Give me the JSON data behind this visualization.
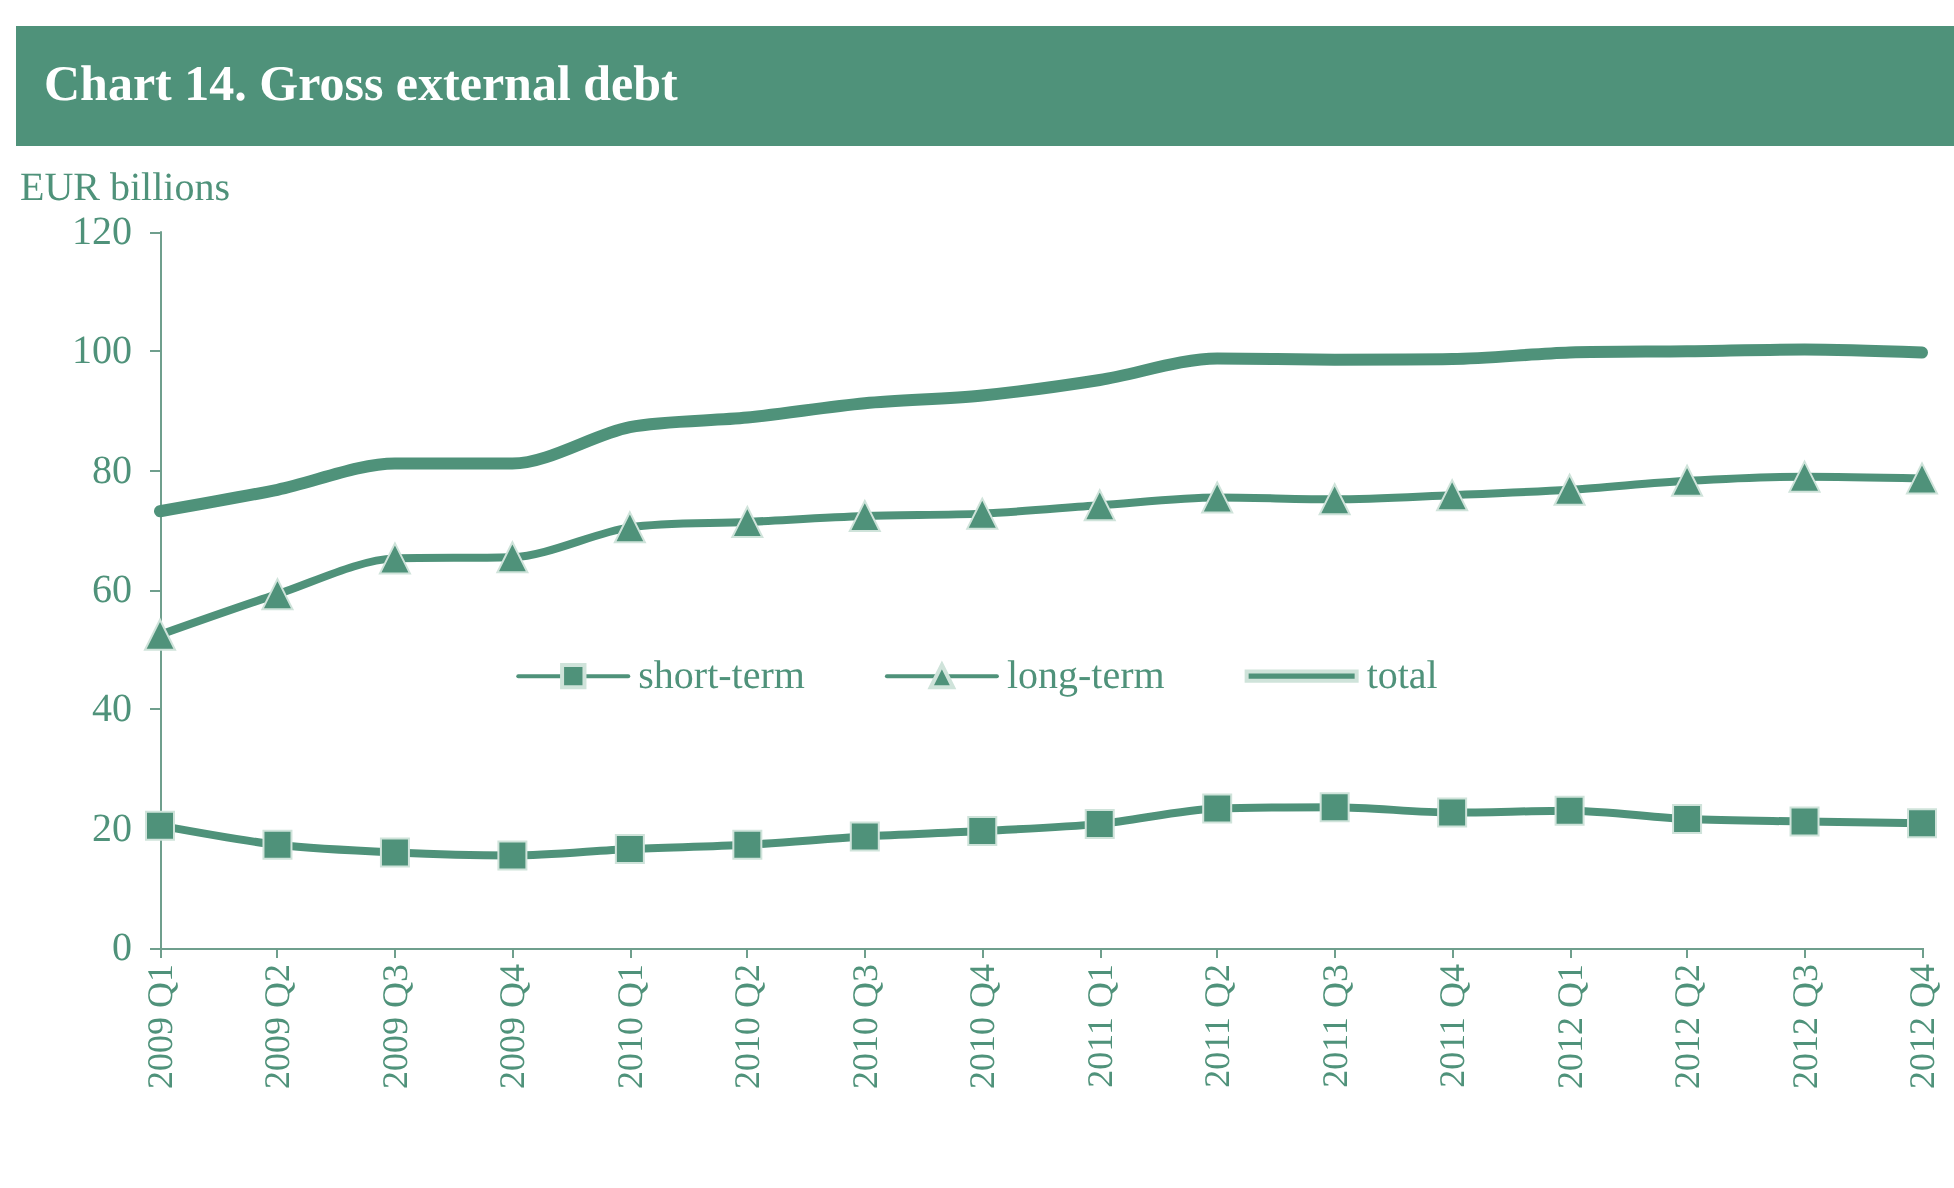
{
  "chart_data": {
    "type": "line",
    "title": "Chart 14. Gross external debt",
    "ylabel": "EUR billions",
    "categories": [
      "2009 Q1",
      "2009 Q2",
      "2009 Q3",
      "2009 Q4",
      "2010 Q1",
      "2010 Q2",
      "2010 Q3",
      "2010 Q4",
      "2011 Q1",
      "2011 Q2",
      "2011 Q3",
      "2011 Q4",
      "2012 Q1",
      "2012 Q2",
      "2012 Q3",
      "2012 Q4"
    ],
    "series": [
      {
        "name": "short-term",
        "color": "#4f927a",
        "marker": "square",
        "values": [
          20.5,
          17.3,
          16,
          15.5,
          16.6,
          17.3,
          18.7,
          19.6,
          20.8,
          23.4,
          23.6,
          22.7,
          23,
          21.6,
          21.2,
          20.9
        ]
      },
      {
        "name": "long-term",
        "color": "#4f927a",
        "marker": "triangle",
        "values": [
          52.5,
          59.3,
          65.3,
          65.5,
          70.5,
          71.4,
          72.4,
          72.8,
          74.2,
          75.5,
          75.2,
          75.9,
          76.8,
          78.3,
          79,
          78.7
        ]
      },
      {
        "name": "total",
        "color": "#4f927a",
        "marker": "none",
        "values": [
          73.2,
          76.8,
          81.2,
          81.2,
          87.3,
          88.9,
          91.3,
          92.6,
          95.2,
          98.8,
          98.6,
          98.7,
          99.8,
          100,
          100.3,
          99.8
        ]
      }
    ],
    "ylim": [
      0,
      120
    ],
    "yticks": [
      0,
      20,
      40,
      60,
      80,
      100,
      120
    ],
    "grid": false,
    "legend": "center"
  }
}
